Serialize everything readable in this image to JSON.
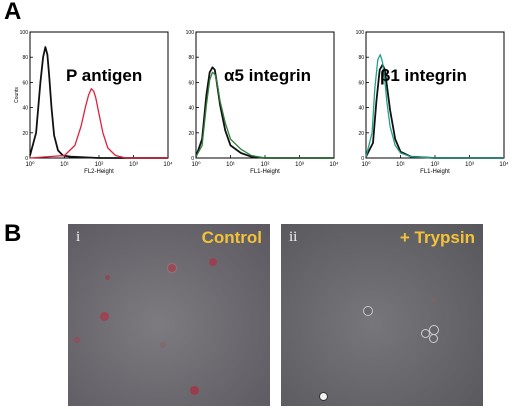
{
  "panels": {
    "a": "A",
    "b": "B"
  },
  "histograms": [
    {
      "title": "P antigen",
      "xlabel": "FL2-Height",
      "ylabel": "Counts",
      "marker_color": "#e0203a"
    },
    {
      "title": "α5 integrin",
      "xlabel": "FL1-Height",
      "ylabel": "",
      "marker_color": "#2f7f3a"
    },
    {
      "title": "β1 integrin",
      "xlabel": "FL1-Height",
      "ylabel": "",
      "marker_color": "#23a08c"
    }
  ],
  "axis": {
    "y_ticks": [
      "0",
      "20",
      "40",
      "60",
      "80",
      "100"
    ],
    "x_ticks": [
      "10⁰",
      "10¹",
      "10²",
      "10³",
      "10⁴"
    ]
  },
  "micrographs": [
    {
      "sub": "i",
      "label": "Control"
    },
    {
      "sub": "ii",
      "label": "+ Trypsin"
    }
  ],
  "chart_data": [
    {
      "type": "line",
      "title": "P antigen",
      "xlabel": "FL2-Height",
      "ylabel": "Counts",
      "x_scale": "log",
      "xlim": [
        1,
        10000
      ],
      "ylim": [
        0,
        100
      ],
      "series": [
        {
          "color": "#111111",
          "x": [
            1,
            1.5,
            2,
            2.4,
            2.8,
            3.2,
            3.6,
            4.2,
            5,
            6.5,
            9,
            15,
            100,
            10000
          ],
          "y": [
            2,
            20,
            60,
            80,
            88,
            82,
            65,
            40,
            18,
            6,
            2,
            1,
            0,
            0
          ]
        },
        {
          "color": "#e0203a",
          "x": [
            1,
            10,
            20,
            30,
            40,
            50,
            60,
            70,
            80,
            100,
            130,
            180,
            300,
            600,
            10000
          ],
          "y": [
            0,
            2,
            10,
            25,
            40,
            50,
            55,
            53,
            48,
            35,
            20,
            8,
            2,
            0,
            0
          ]
        }
      ]
    },
    {
      "type": "line",
      "title": "α5 integrin",
      "xlabel": "FL1-Height",
      "x_scale": "log",
      "xlim": [
        1,
        10000
      ],
      "ylim": [
        0,
        100
      ],
      "series": [
        {
          "color": "#111111",
          "x": [
            1,
            1.5,
            2,
            2.5,
            3,
            3.5,
            4,
            5,
            7,
            10,
            20,
            40,
            100,
            10000
          ],
          "y": [
            1,
            15,
            50,
            68,
            72,
            70,
            60,
            42,
            22,
            10,
            4,
            1,
            0,
            0
          ]
        },
        {
          "color": "#2f7f3a",
          "x": [
            1,
            1.5,
            2,
            2.5,
            3,
            3.6,
            4.2,
            5,
            7,
            10,
            20,
            40,
            100,
            10000
          ],
          "y": [
            1,
            10,
            42,
            62,
            68,
            66,
            58,
            45,
            28,
            15,
            7,
            2,
            0,
            0
          ]
        }
      ]
    },
    {
      "type": "line",
      "title": "β1 integrin",
      "xlabel": "FL1-Height",
      "x_scale": "log",
      "xlim": [
        1,
        10000
      ],
      "ylim": [
        0,
        100
      ],
      "series": [
        {
          "color": "#111111",
          "x": [
            1,
            1.6,
            2,
            2.5,
            3,
            3.5,
            4,
            5,
            7,
            10,
            20,
            100,
            10000
          ],
          "y": [
            1,
            12,
            45,
            70,
            74,
            70,
            58,
            38,
            15,
            5,
            1,
            0,
            0
          ]
        },
        {
          "color": "#23a08c",
          "x": [
            1,
            1.5,
            1.8,
            2.2,
            2.6,
            3,
            3.5,
            4,
            5,
            7,
            10,
            20,
            100,
            10000
          ],
          "y": [
            1,
            20,
            55,
            78,
            82,
            76,
            62,
            45,
            25,
            10,
            4,
            1,
            0,
            0
          ]
        }
      ]
    }
  ]
}
